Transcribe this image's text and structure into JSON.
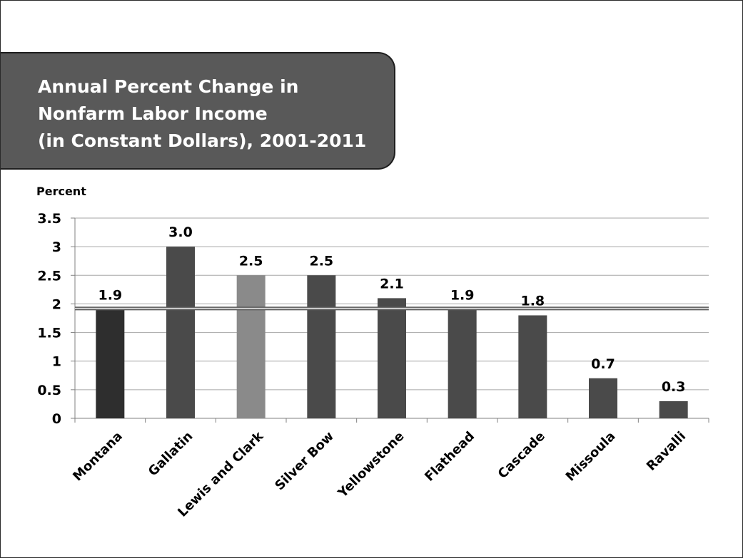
{
  "header": {
    "title": "Annual Percent Change in\nNonfarm Labor Income\n(in Constant Dollars), 2001-2011"
  },
  "colors": {
    "title_box": "#595959",
    "bar_default": "#4a4a4a",
    "bar_state": "#2e2e2e",
    "bar_highlight": "#8a8a8a",
    "reference_line": "#8c8c8c",
    "gridline": "#a6a6a6"
  },
  "chart_data": {
    "type": "bar",
    "title": "Annual Percent Change in Nonfarm Labor Income (in Constant Dollars), 2001-2011",
    "ylabel": "Percent",
    "xlabel": "",
    "categories": [
      "Montana",
      "Gallatin",
      "Lewis and Clark",
      "Silver Bow",
      "Yellowstone",
      "Flathead",
      "Cascade",
      "Missoula",
      "Ravalli"
    ],
    "values": [
      1.9,
      3.0,
      2.5,
      2.5,
      2.1,
      1.9,
      1.8,
      0.7,
      0.3
    ],
    "data_labels": [
      "1.9",
      "3.0",
      "2.5",
      "2.5",
      "2.1",
      "1.9",
      "1.8",
      "0.7",
      "0.3"
    ],
    "bar_colors": [
      "#2e2e2e",
      "#4a4a4a",
      "#8a8a8a",
      "#4a4a4a",
      "#4a4a4a",
      "#4a4a4a",
      "#4a4a4a",
      "#4a4a4a",
      "#4a4a4a"
    ],
    "ylim": [
      0,
      3.5
    ],
    "yticks": [
      0,
      0.5,
      1,
      1.5,
      2,
      2.5,
      3,
      3.5
    ],
    "ytick_labels": [
      "0",
      "0.5",
      "1",
      "1.5",
      "2",
      "2.5",
      "3",
      "3.5"
    ],
    "reference_line": 1.92,
    "grid": true,
    "legend": "none"
  }
}
